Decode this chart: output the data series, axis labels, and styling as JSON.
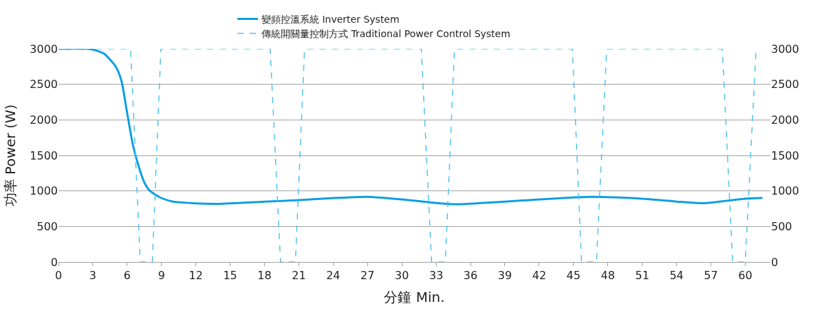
{
  "chart_data": {
    "type": "line",
    "xlabel": "分鐘 Min.",
    "ylabel": "功率 Power (W)",
    "series": [
      {
        "name": "變頻控溫系統 Inverter System",
        "color": "#0a9fe3",
        "line_style": "solid",
        "x": [
          0,
          2.5,
          3,
          4,
          5,
          5.5,
          6,
          6.5,
          7,
          7.5,
          8,
          9,
          10,
          12,
          14,
          18,
          21,
          24,
          27,
          30,
          33,
          34.7,
          39,
          42,
          46.5,
          51,
          54,
          56.3,
          58,
          60,
          61.5
        ],
        "values": [
          3000,
          3000,
          2990,
          2930,
          2750,
          2550,
          2100,
          1650,
          1350,
          1120,
          1000,
          900,
          850,
          825,
          818,
          850,
          870,
          900,
          916,
          880,
          830,
          812,
          850,
          880,
          916,
          890,
          850,
          827,
          855,
          890,
          903
        ]
      },
      {
        "name": "傳統開關量控制方式 Traditional Power Control System",
        "color": "#4cc3f0",
        "line_style": "dashed",
        "x": [
          0,
          6.3,
          7.15,
          8.2,
          8.95,
          18.5,
          19.4,
          20.7,
          21.5,
          31.7,
          32.6,
          33.8,
          34.6,
          44.9,
          45.7,
          47.0,
          47.9,
          58.0,
          58.9,
          60.0,
          60.95
        ],
        "values": [
          3000,
          3000,
          0,
          0,
          3000,
          3000,
          0,
          0,
          3000,
          3000,
          0,
          0,
          3000,
          3000,
          0,
          0,
          3000,
          3000,
          0,
          0,
          3000
        ]
      }
    ],
    "xlim": [
      0,
      62.2
    ],
    "xticks": [
      0,
      3,
      6,
      9,
      12,
      15,
      18,
      21,
      24,
      27,
      30,
      33,
      36,
      39,
      42,
      45,
      48,
      51,
      54,
      57,
      60
    ],
    "ylim": [
      0,
      3000
    ],
    "yticks": [
      0,
      500,
      1000,
      1500,
      2000,
      2500,
      3000
    ],
    "y2lim": [
      0,
      3000
    ],
    "y2ticks": [
      0,
      500,
      1000,
      1500,
      2000,
      2500,
      3000
    ],
    "grid": "y",
    "legend": "top",
    "marker": "none"
  }
}
